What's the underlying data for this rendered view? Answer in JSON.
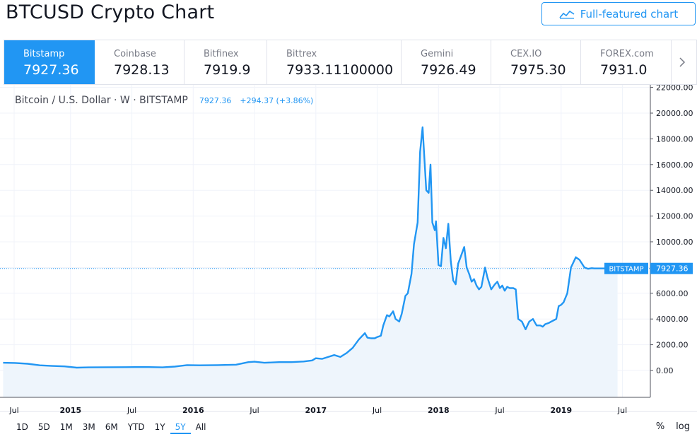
{
  "page": {
    "title": "BTCUSD Crypto Chart",
    "full_featured_label": "Full-featured chart"
  },
  "exchanges": [
    {
      "name": "Bitstamp",
      "price": "7927.36",
      "active": true
    },
    {
      "name": "Coinbase",
      "price": "7928.13",
      "active": false
    },
    {
      "name": "Bitfinex",
      "price": "7919.9",
      "active": false
    },
    {
      "name": "Bittrex",
      "price": "7933.11100000",
      "active": false
    },
    {
      "name": "Gemini",
      "price": "7926.49",
      "active": false
    },
    {
      "name": "CEX.IO",
      "price": "7975.30",
      "active": false
    },
    {
      "name": "FOREX.com",
      "price": "7931.0",
      "active": false
    }
  ],
  "legend": {
    "symbol": "Bitcoin / U.S. Dollar · W · BITSTAMP",
    "last": "7927.36",
    "change": "+294.37 (+3.86%)"
  },
  "price_label": {
    "exchange": "BITSTAMP",
    "value": "7927.36"
  },
  "ranges": [
    "1D",
    "5D",
    "1M",
    "3M",
    "6M",
    "YTD",
    "1Y",
    "5Y",
    "All"
  ],
  "active_range": "5Y",
  "scale_options": {
    "percent": "%",
    "log": "log"
  },
  "colors": {
    "accent": "#2196f3",
    "area": "#eef5fc",
    "grid": "#f0f3fa"
  },
  "chart_data": {
    "type": "area",
    "title": "",
    "xlabel": "",
    "ylabel": "",
    "ylim": [
      -2000,
      22000
    ],
    "yticks": [
      "0.00",
      "2000.00",
      "4000.00",
      "6000.00",
      "8000.00",
      "10000.00",
      "12000.00",
      "14000.00",
      "16000.00",
      "18000.00",
      "20000.00",
      "22000.00"
    ],
    "xticks": [
      {
        "label": "Jul",
        "t": 2014.54
      },
      {
        "label": "2015",
        "t": 2015.0
      },
      {
        "label": "Jul",
        "t": 2015.5
      },
      {
        "label": "2016",
        "t": 2016.0
      },
      {
        "label": "Jul",
        "t": 2016.5
      },
      {
        "label": "2017",
        "t": 2017.0
      },
      {
        "label": "Jul",
        "t": 2017.5
      },
      {
        "label": "2018",
        "t": 2018.0
      },
      {
        "label": "Jul",
        "t": 2018.5
      },
      {
        "label": "2019",
        "t": 2019.0
      },
      {
        "label": "Jul",
        "t": 2019.5
      }
    ],
    "xrange": [
      2014.45,
      2019.74
    ],
    "grid": true,
    "last_value": 7927.36,
    "series": [
      {
        "name": "BITSTAMP",
        "t": [
          2014.45,
          2014.55,
          2014.65,
          2014.75,
          2014.85,
          2014.95,
          2015.05,
          2015.15,
          2015.3,
          2015.45,
          2015.6,
          2015.75,
          2015.85,
          2015.95,
          2016.05,
          2016.2,
          2016.35,
          2016.45,
          2016.5,
          2016.58,
          2016.7,
          2016.8,
          2016.9,
          2016.97,
          2017.0,
          2017.05,
          2017.1,
          2017.15,
          2017.2,
          2017.25,
          2017.3,
          2017.35,
          2017.4,
          2017.42,
          2017.45,
          2017.48,
          2017.5,
          2017.53,
          2017.55,
          2017.58,
          2017.6,
          2017.63,
          2017.65,
          2017.68,
          2017.7,
          2017.73,
          2017.75,
          2017.78,
          2017.8,
          2017.83,
          2017.85,
          2017.87,
          2017.9,
          2017.92,
          2017.935,
          2017.95,
          2017.97,
          2017.98,
          2018.0,
          2018.02,
          2018.04,
          2018.06,
          2018.08,
          2018.1,
          2018.12,
          2018.14,
          2018.16,
          2018.18,
          2018.21,
          2018.23,
          2018.25,
          2018.27,
          2018.29,
          2018.31,
          2018.33,
          2018.35,
          2018.38,
          2018.4,
          2018.43,
          2018.46,
          2018.48,
          2018.5,
          2018.52,
          2018.54,
          2018.56,
          2018.58,
          2018.61,
          2018.63,
          2018.65,
          2018.68,
          2018.71,
          2018.74,
          2018.77,
          2018.8,
          2018.83,
          2018.85,
          2018.87,
          2018.9,
          2018.92,
          2018.94,
          2018.96,
          2018.98,
          2019.0,
          2019.02,
          2019.05,
          2019.08,
          2019.12,
          2019.15,
          2019.19,
          2019.22,
          2019.25,
          2019.27,
          2019.3,
          2019.32,
          2019.34,
          2019.36,
          2019.38,
          2019.4,
          2019.42,
          2019.44,
          2019.46
        ],
        "values": [
          600,
          580,
          520,
          400,
          350,
          320,
          220,
          240,
          250,
          260,
          270,
          240,
          300,
          420,
          400,
          420,
          450,
          650,
          680,
          600,
          650,
          650,
          700,
          780,
          950,
          900,
          1050,
          1200,
          1050,
          1350,
          1750,
          2400,
          2900,
          2550,
          2500,
          2500,
          2600,
          2700,
          3500,
          4300,
          4200,
          4600,
          4000,
          3800,
          4400,
          5800,
          6000,
          7500,
          9800,
          11500,
          17000,
          18900,
          14000,
          13800,
          16000,
          11500,
          10900,
          11600,
          8200,
          8100,
          10300,
          9500,
          11400,
          8500,
          7000,
          6700,
          8300,
          8800,
          9600,
          8000,
          7500,
          6900,
          7100,
          6600,
          6300,
          6500,
          8000,
          7200,
          6300,
          6700,
          6900,
          6400,
          6600,
          6200,
          6500,
          6400,
          6400,
          6300,
          4000,
          3800,
          3200,
          3800,
          4000,
          3500,
          3500,
          3400,
          3600,
          3700,
          3800,
          3900,
          4000,
          5000,
          5100,
          5300,
          6000,
          8000,
          8800,
          8600,
          8000,
          7900,
          7950,
          7927.36,
          7927.36,
          7927.36,
          7927.36,
          7927.36,
          7927.36,
          7927.36,
          7927.36,
          7927.36,
          7927.36
        ]
      }
    ]
  }
}
